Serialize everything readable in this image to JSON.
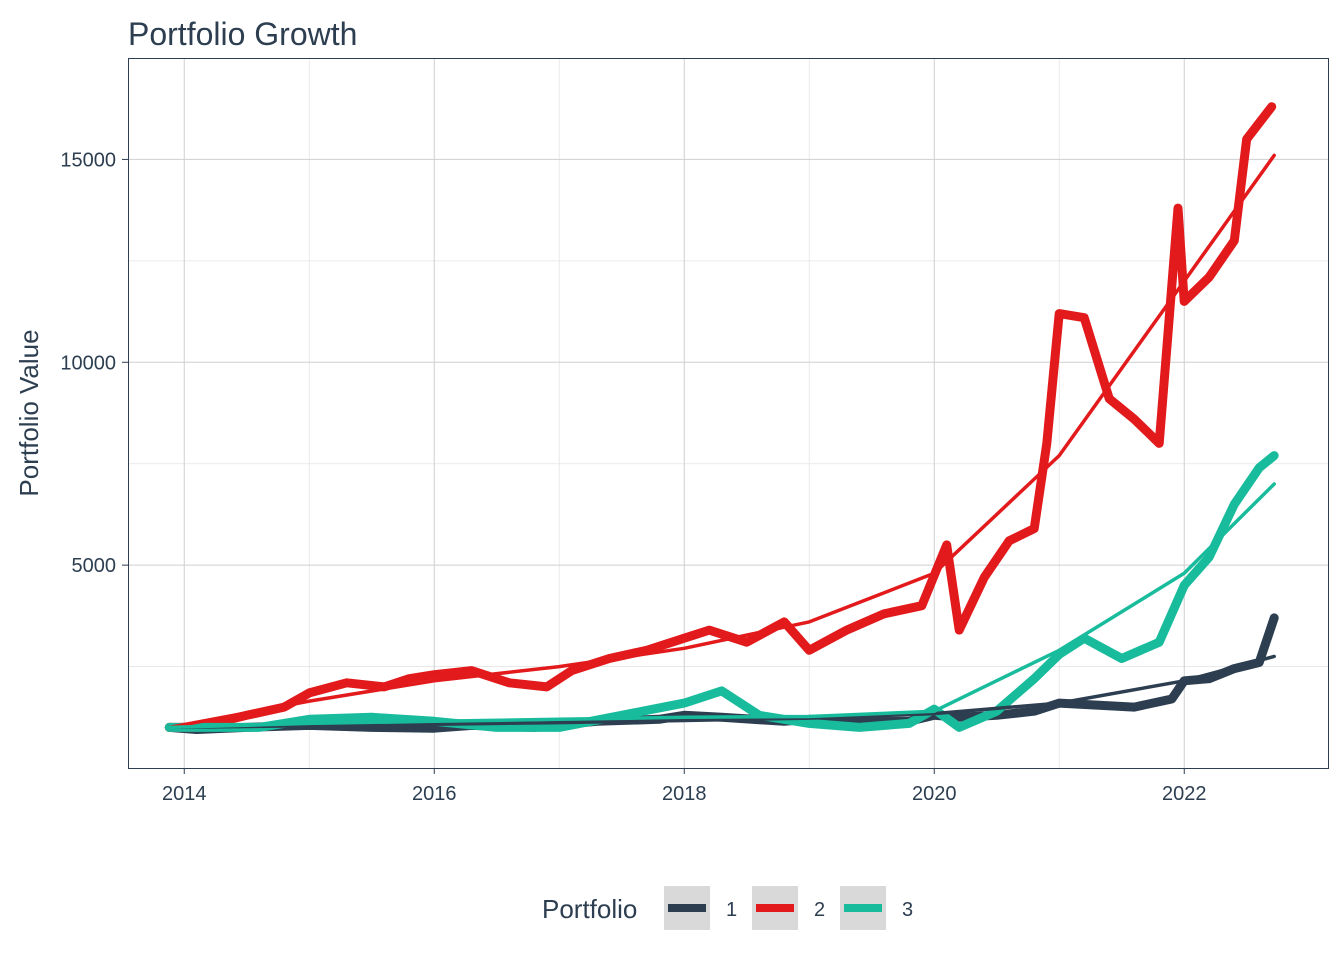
{
  "chart_data": {
    "type": "line",
    "title": "Portfolio Growth",
    "xlabel": "",
    "ylabel": "Portfolio Value",
    "xlim": [
      2013.55,
      2023.15
    ],
    "ylim": [
      0,
      17500
    ],
    "x_ticks": [
      2014,
      2016,
      2018,
      2020,
      2022
    ],
    "x_tick_labels": [
      "2014",
      "2016",
      "2018",
      "2020",
      "2022"
    ],
    "y_ticks": [
      5000,
      10000,
      15000
    ],
    "y_tick_labels": [
      "5000",
      "10000",
      "15000"
    ],
    "grid": true,
    "legend": {
      "title": "Portfolio",
      "position": "bottom"
    },
    "series": [
      {
        "name": "1",
        "color": "#2c3e50",
        "x": [
          2013.88,
          2014.1,
          2014.5,
          2015.0,
          2015.5,
          2016.0,
          2016.3,
          2016.8,
          2017.3,
          2017.8,
          2018.0,
          2018.3,
          2018.8,
          2019.0,
          2019.4,
          2019.8,
          2020.0,
          2020.2,
          2020.5,
          2020.8,
          2021.0,
          2021.3,
          2021.6,
          2021.9,
          2022.0,
          2022.2,
          2022.4,
          2022.6,
          2022.72
        ],
        "values": [
          1000,
          950,
          1000,
          1050,
          1000,
          980,
          1050,
          1000,
          1150,
          1200,
          1300,
          1250,
          1150,
          1200,
          1150,
          1150,
          1300,
          1250,
          1300,
          1400,
          1600,
          1550,
          1500,
          1700,
          2150,
          2200,
          2450,
          2600,
          3700
        ],
        "trend_x": [
          2013.88,
          2015,
          2016,
          2017,
          2018,
          2019,
          2020,
          2021,
          2022,
          2022.72
        ],
        "trend": [
          1000,
          1040,
          1080,
          1120,
          1170,
          1230,
          1340,
          1600,
          2150,
          2750
        ]
      },
      {
        "name": "2",
        "color": "#e31a1c",
        "x": [
          2013.88,
          2014.1,
          2014.5,
          2014.8,
          2015.0,
          2015.3,
          2015.6,
          2015.8,
          2016.0,
          2016.3,
          2016.6,
          2016.9,
          2017.1,
          2017.4,
          2017.7,
          2018.0,
          2018.2,
          2018.5,
          2018.8,
          2019.0,
          2019.3,
          2019.6,
          2019.9,
          2020.1,
          2020.2,
          2020.4,
          2020.6,
          2020.8,
          2020.9,
          2021.0,
          2021.2,
          2021.4,
          2021.6,
          2021.8,
          2021.95,
          2022.0,
          2022.2,
          2022.4,
          2022.5,
          2022.7
        ],
        "values": [
          1000,
          1000,
          1300,
          1500,
          1850,
          2100,
          2000,
          2200,
          2300,
          2400,
          2100,
          2000,
          2400,
          2700,
          2900,
          3200,
          3400,
          3100,
          3600,
          2900,
          3400,
          3800,
          4000,
          5500,
          3400,
          4700,
          5600,
          5900,
          8000,
          11200,
          11100,
          9100,
          8600,
          8000,
          13800,
          11500,
          12100,
          13000,
          15500,
          16300
        ],
        "trend_x": [
          2013.88,
          2015,
          2016,
          2017,
          2018,
          2019,
          2020,
          2021,
          2022,
          2022.72
        ],
        "trend": [
          1000,
          1650,
          2150,
          2500,
          2950,
          3600,
          4800,
          7700,
          12000,
          15100
        ]
      },
      {
        "name": "3",
        "color": "#18bc9c",
        "x": [
          2013.88,
          2014.2,
          2014.6,
          2015.0,
          2015.5,
          2016.0,
          2016.5,
          2017.0,
          2017.5,
          2018.0,
          2018.3,
          2018.6,
          2019.0,
          2019.4,
          2019.8,
          2020.0,
          2020.2,
          2020.5,
          2020.8,
          2021.0,
          2021.2,
          2021.5,
          2021.8,
          2022.0,
          2022.2,
          2022.4,
          2022.6,
          2022.72
        ],
        "values": [
          1000,
          1000,
          1000,
          1200,
          1250,
          1150,
          1000,
          1000,
          1300,
          1600,
          1900,
          1300,
          1100,
          1000,
          1100,
          1450,
          1000,
          1400,
          2200,
          2800,
          3200,
          2700,
          3100,
          4500,
          5200,
          6500,
          7400,
          7700
        ],
        "trend_x": [
          2013.88,
          2015,
          2016,
          2017,
          2018,
          2019,
          2020,
          2021,
          2022,
          2022.72
        ],
        "trend": [
          1000,
          1100,
          1150,
          1200,
          1250,
          1270,
          1400,
          2900,
          4800,
          7000
        ]
      }
    ]
  }
}
